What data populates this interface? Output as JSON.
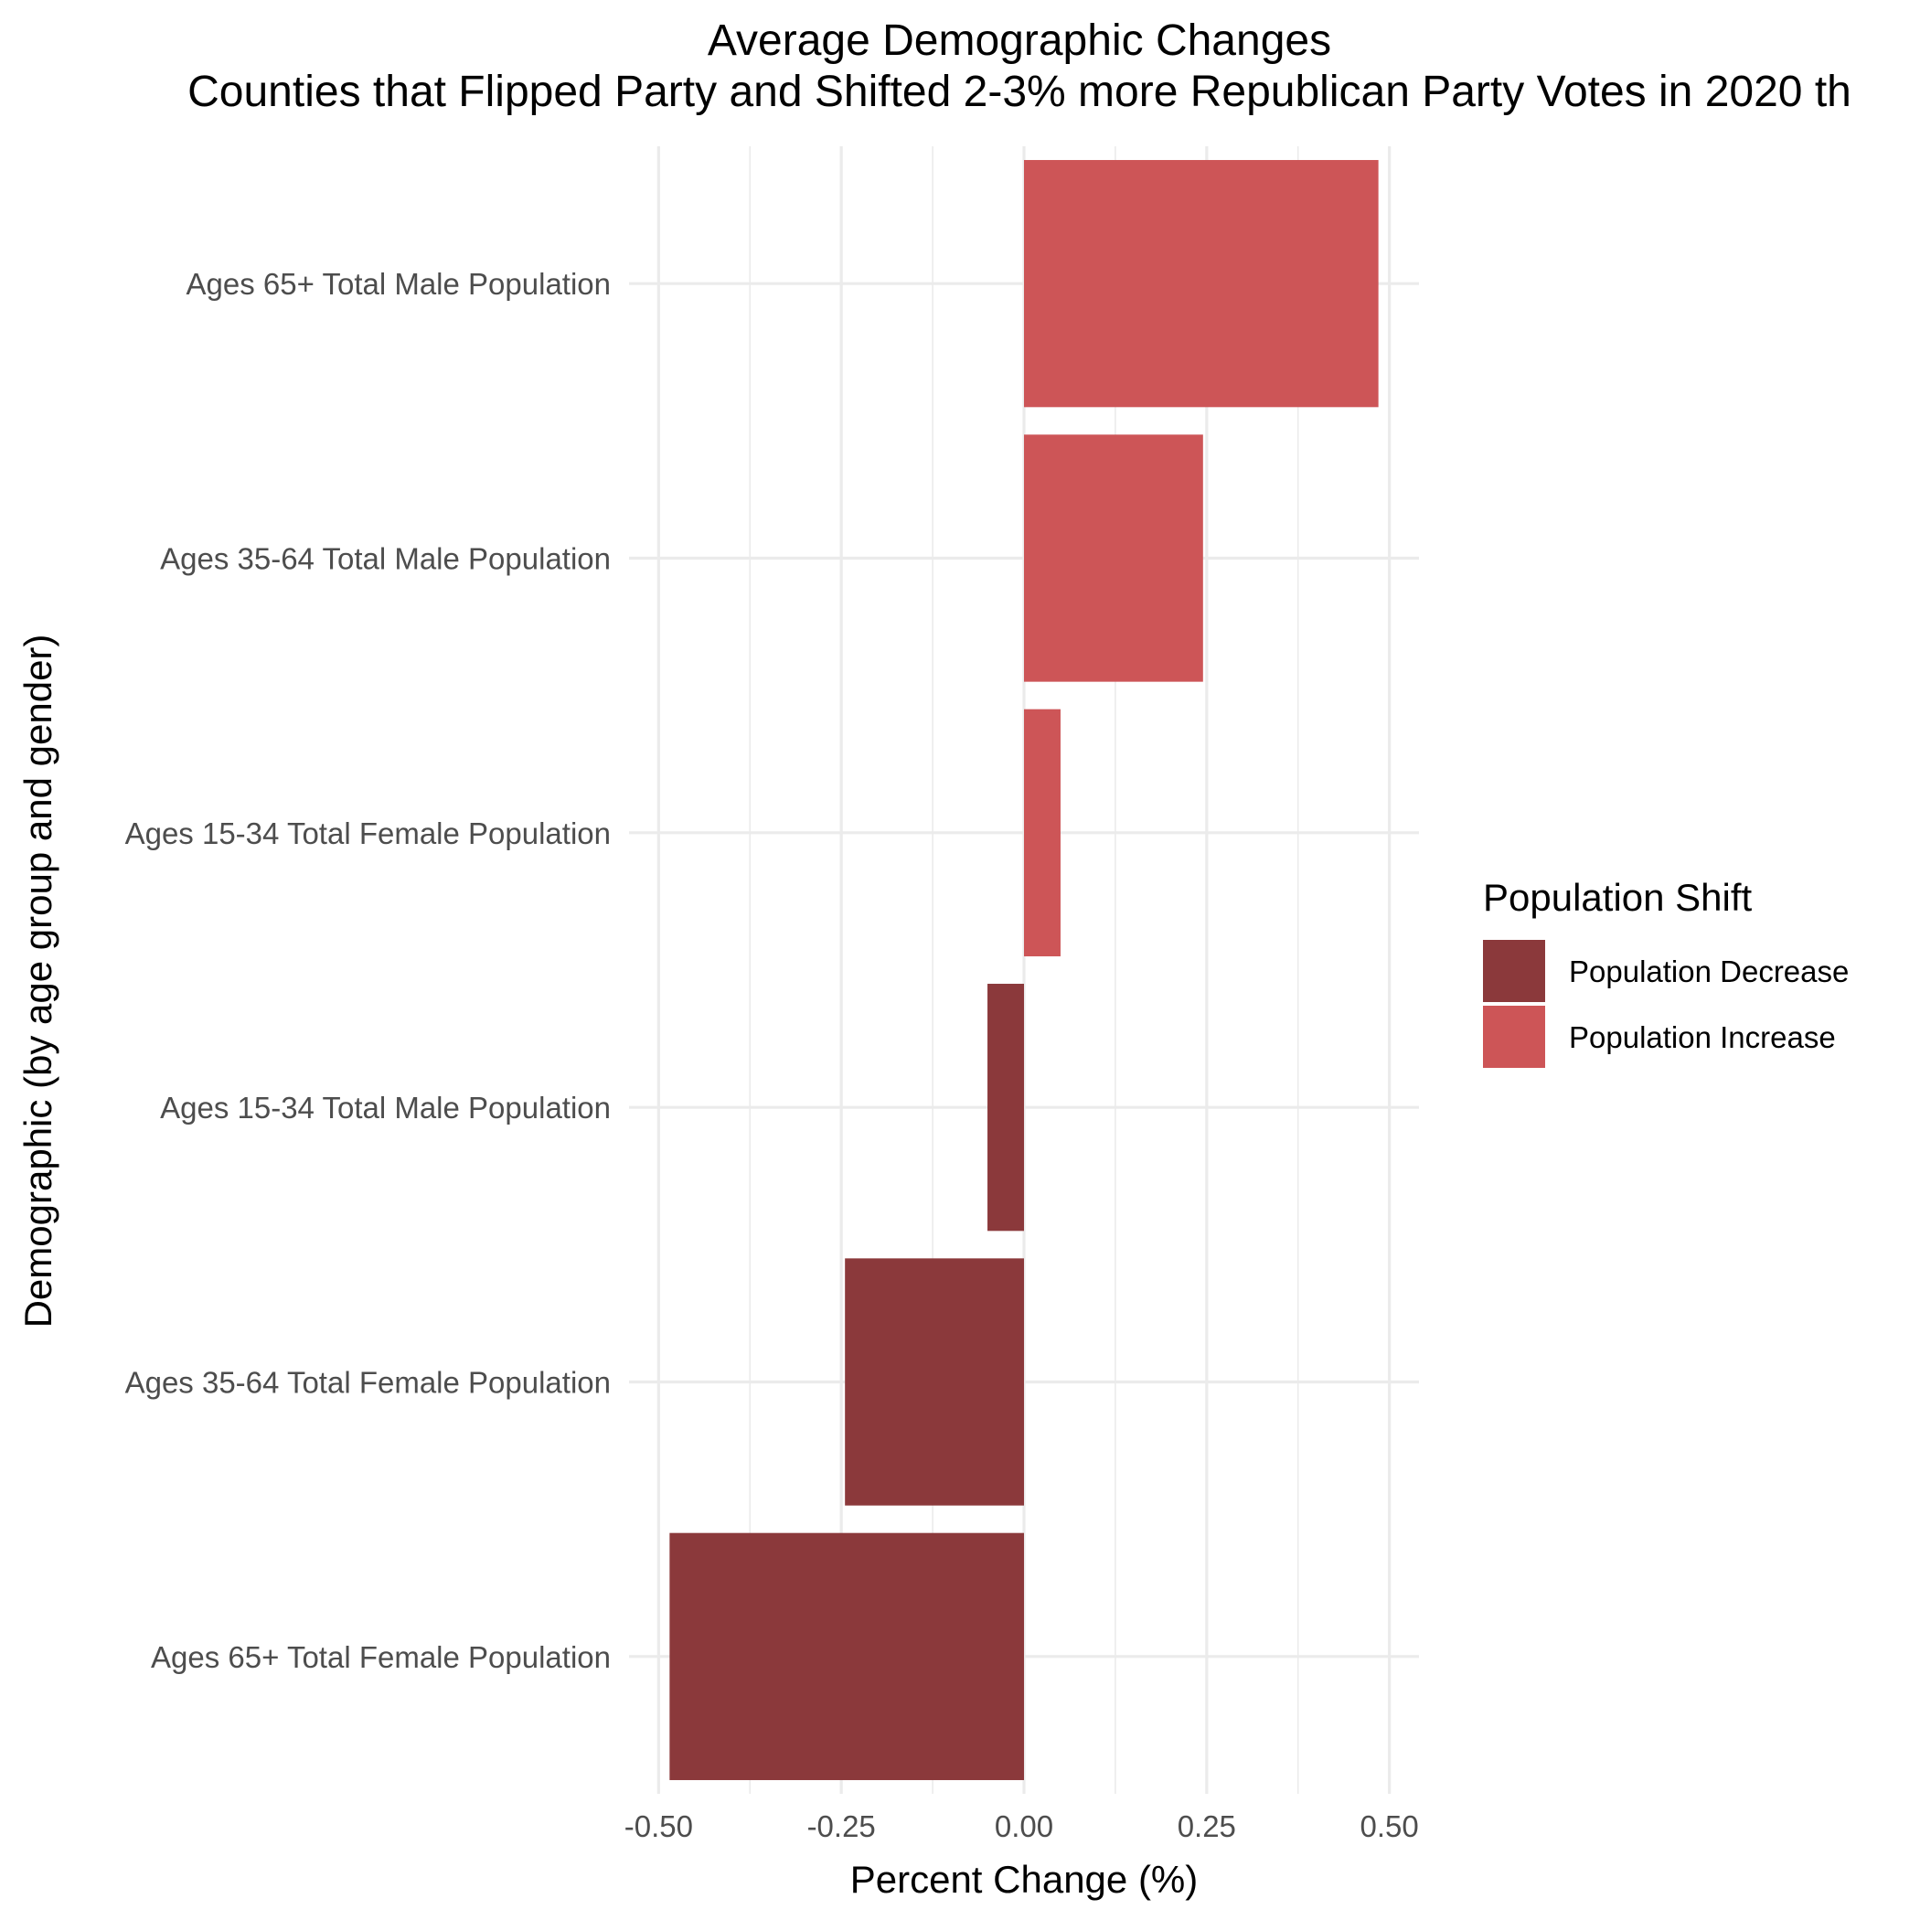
{
  "chart_data": {
    "type": "bar",
    "orientation": "horizontal",
    "title": "Average Demographic Changes",
    "subtitle": "Counties that Flipped Party and Shifted 2-3% more Republican Party Votes in 2020 th",
    "xlabel": "Percent Change (%)",
    "ylabel": "Demographic (by age group and gender)",
    "xlim": [
      -0.5,
      0.5
    ],
    "x_ticks": [
      "-0.50",
      "-0.25",
      "0.00",
      "0.25",
      "0.50"
    ],
    "x_tick_values": [
      -0.5,
      -0.25,
      0,
      0.25,
      0.5
    ],
    "grid": true,
    "legend": {
      "title": "Population Shift",
      "placement": "right",
      "entries": [
        {
          "label": "Population Decrease",
          "color": "#8b393b"
        },
        {
          "label": "Population Increase",
          "color": "#cd5557"
        }
      ]
    },
    "categories": [
      "Ages 65+ Total Male Population",
      "Ages 35-64 Total Male Population",
      "Ages 15-34 Total Female Population",
      "Ages 15-34 Total Male Population",
      "Ages 35-64 Total Female Population",
      "Ages 65+ Total Female Population"
    ],
    "values": [
      0.485,
      0.245,
      0.05,
      -0.05,
      -0.245,
      -0.485
    ],
    "groups": [
      "Population Increase",
      "Population Increase",
      "Population Increase",
      "Population Decrease",
      "Population Decrease",
      "Population Decrease"
    ]
  }
}
